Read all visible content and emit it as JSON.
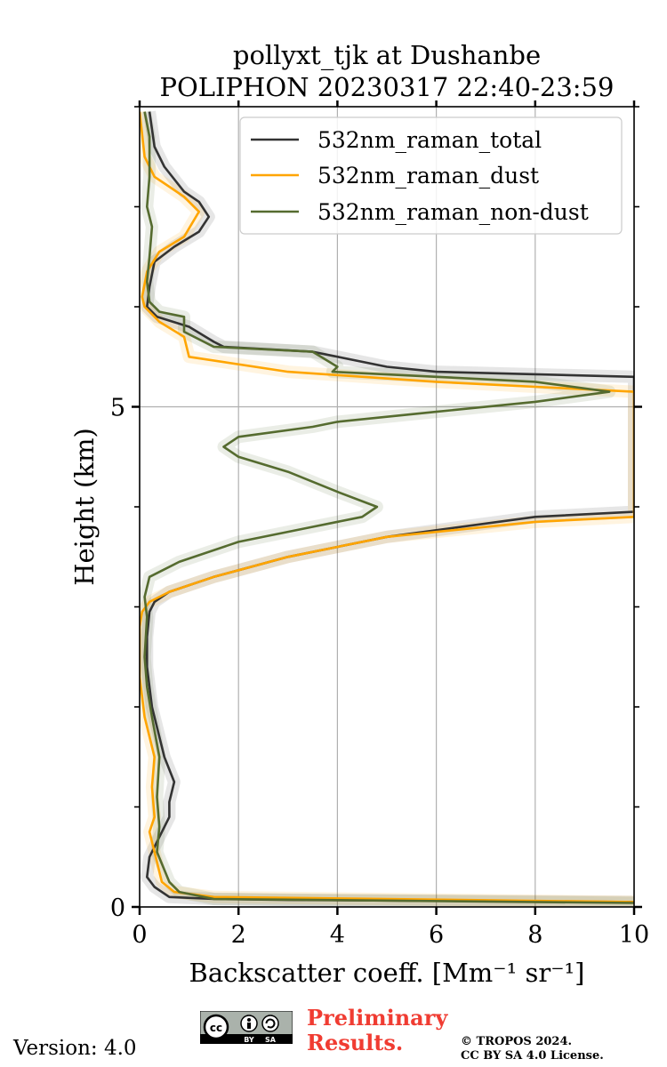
{
  "chart_data": {
    "type": "line",
    "title": "pollyxt_tjk at Dushanbe",
    "subtitle": "POLIPHON 20230317 22:40-23:59",
    "xlabel": "Backscatter coeff. [Mm⁻¹ sr⁻¹]",
    "ylabel": "Height (km)",
    "xlim": [
      0,
      10
    ],
    "ylim": [
      0,
      8
    ],
    "x_ticks": [
      0,
      2,
      4,
      6,
      8,
      10
    ],
    "y_ticks_labeled": [
      0,
      5
    ],
    "y_ticks_minor": [
      1,
      2,
      3,
      4,
      6,
      7,
      8
    ],
    "grid": "vertical at x ticks, horizontal at 5 km",
    "legend_position": "top-right",
    "orientation": "x = backscatter, y = height",
    "series": [
      {
        "name": "532nm_raman_total",
        "color": "#333333",
        "points": [
          [
            0.2,
            7.95
          ],
          [
            0.3,
            7.6
          ],
          [
            0.5,
            7.4
          ],
          [
            0.9,
            7.15
          ],
          [
            1.2,
            7.05
          ],
          [
            1.4,
            6.9
          ],
          [
            1.2,
            6.75
          ],
          [
            0.7,
            6.6
          ],
          [
            0.3,
            6.45
          ],
          [
            0.2,
            6.2
          ],
          [
            0.15,
            6.0
          ],
          [
            0.35,
            5.9
          ],
          [
            1.0,
            5.8
          ],
          [
            1.5,
            5.65
          ],
          [
            1.7,
            5.6
          ],
          [
            3.5,
            5.55
          ],
          [
            5.0,
            5.4
          ],
          [
            6.0,
            5.35
          ],
          [
            10.0,
            5.3
          ],
          [
            10.0,
            3.95
          ],
          [
            8.0,
            3.9
          ],
          [
            5.0,
            3.7
          ],
          [
            3.0,
            3.5
          ],
          [
            1.5,
            3.3
          ],
          [
            0.6,
            3.15
          ],
          [
            0.3,
            3.05
          ],
          [
            0.2,
            2.95
          ],
          [
            0.15,
            2.7
          ],
          [
            0.15,
            2.4
          ],
          [
            0.25,
            2.0
          ],
          [
            0.5,
            1.5
          ],
          [
            0.7,
            1.25
          ],
          [
            0.6,
            1.05
          ],
          [
            0.6,
            0.9
          ],
          [
            0.4,
            0.7
          ],
          [
            0.2,
            0.5
          ],
          [
            0.15,
            0.3
          ],
          [
            0.3,
            0.2
          ],
          [
            0.6,
            0.1
          ],
          [
            1.5,
            0.08
          ],
          [
            3.0,
            0.07
          ],
          [
            10.0,
            0.05
          ]
        ]
      },
      {
        "name": "532nm_raman_dust",
        "color": "#ffa500",
        "points": [
          [
            0.0,
            7.95
          ],
          [
            0.1,
            7.5
          ],
          [
            0.3,
            7.3
          ],
          [
            0.6,
            7.2
          ],
          [
            0.9,
            7.1
          ],
          [
            1.2,
            6.95
          ],
          [
            0.9,
            6.7
          ],
          [
            0.4,
            6.55
          ],
          [
            0.15,
            6.35
          ],
          [
            0.05,
            6.1
          ],
          [
            0.1,
            6.0
          ],
          [
            0.4,
            5.85
          ],
          [
            0.9,
            5.7
          ],
          [
            1.0,
            5.5
          ],
          [
            3.0,
            5.35
          ],
          [
            6.0,
            5.25
          ],
          [
            8.0,
            5.2
          ],
          [
            10.0,
            5.15
          ],
          [
            10.0,
            3.9
          ],
          [
            8.0,
            3.85
          ],
          [
            5.0,
            3.7
          ],
          [
            3.0,
            3.5
          ],
          [
            1.5,
            3.3
          ],
          [
            0.6,
            3.15
          ],
          [
            0.2,
            3.05
          ],
          [
            0.05,
            2.95
          ],
          [
            0.0,
            2.8
          ],
          [
            0.0,
            2.3
          ],
          [
            0.1,
            1.9
          ],
          [
            0.3,
            1.5
          ],
          [
            0.25,
            1.2
          ],
          [
            0.3,
            0.9
          ],
          [
            0.2,
            0.75
          ],
          [
            0.3,
            0.55
          ],
          [
            0.45,
            0.25
          ],
          [
            0.7,
            0.15
          ],
          [
            1.5,
            0.1
          ],
          [
            10.0,
            0.05
          ]
        ]
      },
      {
        "name": "532nm_raman_non-dust",
        "color": "#556b2f",
        "points": [
          [
            0.1,
            7.95
          ],
          [
            0.2,
            7.7
          ],
          [
            0.2,
            7.3
          ],
          [
            0.15,
            7.0
          ],
          [
            0.25,
            6.8
          ],
          [
            0.2,
            6.5
          ],
          [
            0.15,
            6.25
          ],
          [
            0.2,
            6.05
          ],
          [
            0.4,
            5.95
          ],
          [
            0.9,
            5.9
          ],
          [
            0.9,
            5.75
          ],
          [
            1.5,
            5.6
          ],
          [
            3.5,
            5.55
          ],
          [
            4.0,
            5.4
          ],
          [
            3.9,
            5.35
          ],
          [
            6.0,
            5.3
          ],
          [
            8.0,
            5.25
          ],
          [
            9.5,
            5.15
          ],
          [
            8.0,
            5.05
          ],
          [
            6.0,
            4.95
          ],
          [
            4.0,
            4.85
          ],
          [
            3.5,
            4.8
          ],
          [
            2.0,
            4.7
          ],
          [
            1.7,
            4.6
          ],
          [
            2.0,
            4.5
          ],
          [
            3.0,
            4.35
          ],
          [
            4.0,
            4.15
          ],
          [
            4.8,
            4.0
          ],
          [
            4.5,
            3.9
          ],
          [
            3.5,
            3.8
          ],
          [
            2.0,
            3.65
          ],
          [
            0.8,
            3.45
          ],
          [
            0.2,
            3.3
          ],
          [
            0.1,
            3.1
          ],
          [
            0.15,
            2.9
          ],
          [
            0.1,
            2.5
          ],
          [
            0.15,
            2.2
          ],
          [
            0.25,
            1.9
          ],
          [
            0.4,
            1.5
          ],
          [
            0.35,
            1.1
          ],
          [
            0.4,
            0.8
          ],
          [
            0.35,
            0.55
          ],
          [
            0.6,
            0.25
          ],
          [
            0.8,
            0.15
          ],
          [
            1.5,
            0.08
          ],
          [
            10.0,
            0.04
          ]
        ]
      }
    ]
  },
  "footer": {
    "version": "Version: 4.0",
    "preliminary_line1": "Preliminary",
    "preliminary_line2": "Results.",
    "copyright_line1": "© TROPOS 2024.",
    "copyright_line2": "CC BY SA 4.0 License.",
    "cc_text": "cc",
    "cc_by": "BY",
    "cc_sa": "SA"
  }
}
